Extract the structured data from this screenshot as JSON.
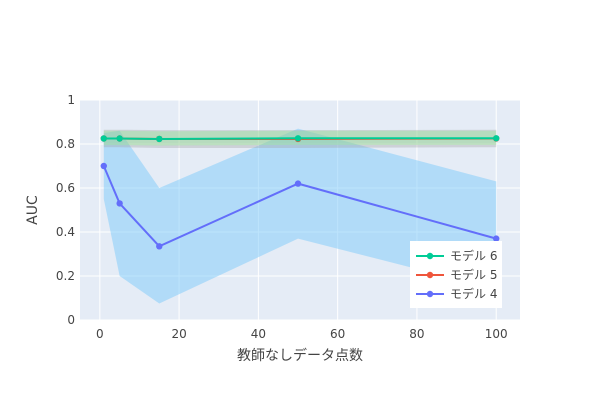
{
  "chart_data": {
    "type": "line",
    "title": "",
    "xlabel": "教師なしデータ点数",
    "ylabel": "AUC",
    "xlim": [
      -5,
      106
    ],
    "ylim": [
      0,
      1
    ],
    "x_ticks": [
      0,
      20,
      40,
      60,
      80,
      100
    ],
    "x_tick_labels": [
      "0",
      "20",
      "40",
      "60",
      "80",
      "100"
    ],
    "y_ticks": [
      0,
      0.2,
      0.4,
      0.6,
      0.8,
      1
    ],
    "y_tick_labels": [
      "0",
      "0.2",
      "0.4",
      "0.6",
      "0.8",
      "1"
    ],
    "grid": true,
    "legend_position": "bottom-right",
    "x": [
      1,
      5,
      15,
      50,
      100
    ],
    "series": [
      {
        "name": "モデル 4",
        "color": "#636efa",
        "band_color": "#87cefa",
        "values": [
          0.7,
          0.53,
          0.335,
          0.62,
          0.37
        ],
        "lower": [
          0.55,
          0.2,
          0.075,
          0.37,
          0.14
        ],
        "upper": [
          0.85,
          0.86,
          0.6,
          0.87,
          0.63
        ]
      },
      {
        "name": "モデル 5",
        "color": "#ef553b",
        "band_color": "#a0a0a0",
        "values": [
          0.825,
          0.825,
          0.823,
          0.823,
          0.825
        ],
        "lower": [
          0.785,
          0.785,
          0.782,
          0.782,
          0.785
        ],
        "upper": [
          0.865,
          0.865,
          0.863,
          0.863,
          0.865
        ]
      },
      {
        "name": "モデル 6",
        "color": "#00cc96",
        "band_color": "#90ee90",
        "values": [
          0.825,
          0.825,
          0.823,
          0.826,
          0.826
        ],
        "lower": [
          0.795,
          0.795,
          0.793,
          0.796,
          0.796
        ],
        "upper": [
          0.86,
          0.86,
          0.858,
          0.86,
          0.86
        ]
      }
    ],
    "legend_order": [
      "モデル 6",
      "モデル 5",
      "モデル 4"
    ],
    "colors": {
      "plot_bg": "#e5ecf6",
      "grid": "#ffffff",
      "tick_text": "#444444",
      "legend_bg": "#ffffff"
    }
  }
}
